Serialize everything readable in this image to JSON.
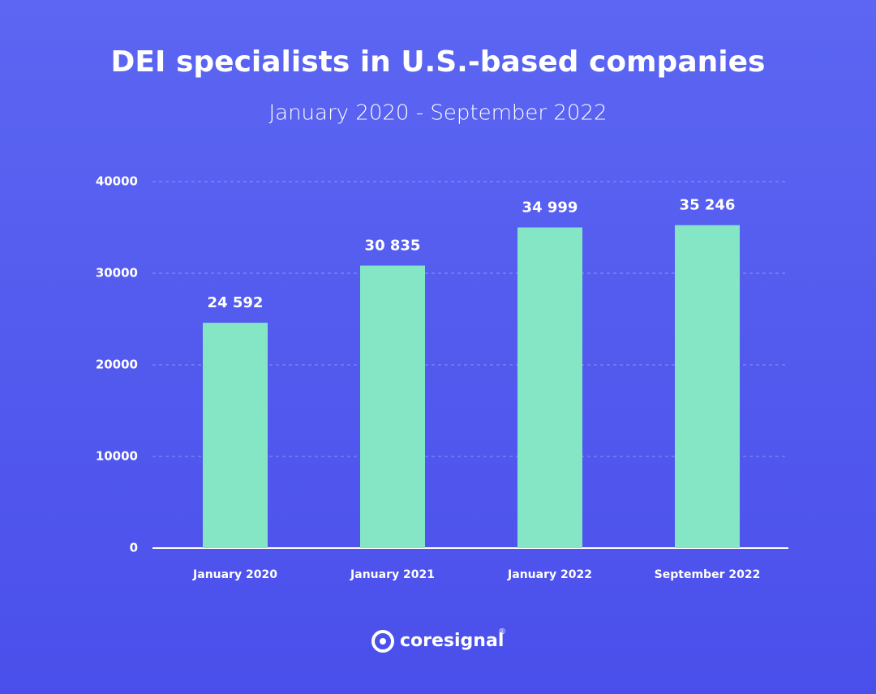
{
  "chart_data": {
    "type": "bar",
    "title": "DEI specialists in U.S.-based companies",
    "subtitle": "January 2020 - September 2022",
    "categories": [
      "January 2020",
      "January 2021",
      "January 2022",
      "September 2022"
    ],
    "values": [
      24592,
      30835,
      34999,
      35246
    ],
    "value_labels": [
      "24 592",
      "30 835",
      "34 999",
      "35 246"
    ],
    "color": "#84e6c4",
    "ylim": [
      0,
      40000
    ],
    "yticks": [
      0,
      10000,
      20000,
      30000,
      40000
    ],
    "grid": true
  },
  "brand": {
    "name": "coresignal",
    "mark": "®"
  }
}
